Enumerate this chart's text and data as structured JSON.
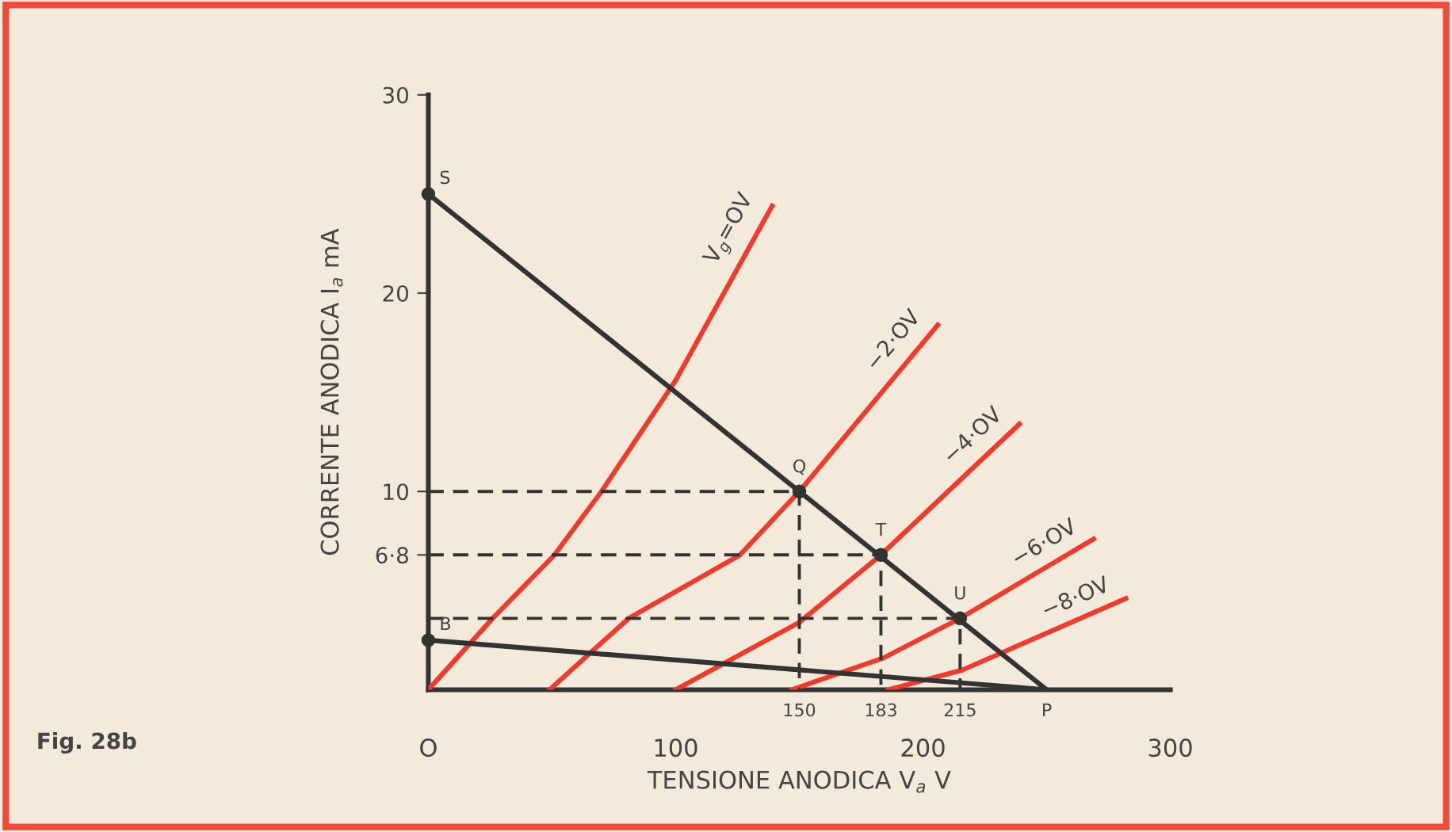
{
  "chart_data": {
    "type": "line",
    "xlabel": "TENSIONE ANODICA V$_{a}$ V",
    "ylabel": "CORRENTE ANODICA I$_{a}$ mA",
    "xlim": [
      0,
      300
    ],
    "ylim": [
      0,
      30
    ],
    "xticks": [
      {
        "value": 0,
        "label": "O"
      },
      100,
      200,
      300
    ],
    "yticks": [
      {
        "value": 6.8,
        "label": "6·8"
      },
      10,
      20,
      30
    ],
    "grid": false,
    "legend": false,
    "series": [
      {
        "name": "V$_{g}$=OV",
        "color": "#ef3b2c",
        "x": [
          0,
          26,
          51,
          70,
          100,
          139
        ],
        "values": [
          0,
          3.6,
          6.8,
          10,
          15.6,
          24.4
        ]
      },
      {
        "name": "−2·OV",
        "color": "#ef3b2c",
        "x": [
          49,
          81,
          126,
          150,
          206
        ],
        "values": [
          0,
          3.6,
          6.8,
          10,
          18.4
        ]
      },
      {
        "name": "−4·OV",
        "color": "#ef3b2c",
        "x": [
          100,
          150,
          183,
          239
        ],
        "values": [
          0,
          3.4,
          6.8,
          13.4
        ]
      },
      {
        "name": "−6·OV",
        "color": "#ef3b2c",
        "x": [
          147,
          184,
          215,
          269
        ],
        "values": [
          0,
          1.6,
          3.6,
          7.6
        ]
      },
      {
        "name": "−8·OV",
        "color": "#ef3b2c",
        "x": [
          186,
          216,
          282
        ],
        "values": [
          0,
          1.0,
          4.6
        ]
      },
      {
        "color": "#333333",
        "x": [
          0,
          250
        ],
        "values": [
          25,
          0
        ]
      },
      {
        "color": "#333333",
        "x": [
          0,
          250
        ],
        "values": [
          2.5,
          0
        ]
      },
      {
        "color": "#333333",
        "line_style": "dashed",
        "x": [
          0,
          150,
          150
        ],
        "values": [
          10,
          10,
          0
        ]
      },
      {
        "color": "#333333",
        "line_style": "dashed",
        "x": [
          0,
          183,
          183
        ],
        "values": [
          6.8,
          6.8,
          0
        ]
      },
      {
        "color": "#333333",
        "line_style": "dashed",
        "x": [
          0,
          215,
          215
        ],
        "values": [
          3.6,
          3.6,
          0
        ]
      },
      {
        "type": "scatter",
        "color": "#333333",
        "marker": "circle",
        "x": [
          0,
          150,
          183,
          215,
          0
        ],
        "values": [
          25,
          10,
          6.8,
          3.6,
          2.5
        ]
      }
    ],
    "annotations": [
      {
        "text": "S",
        "x": 0,
        "y": 25
      },
      {
        "text": "Q",
        "x": 150,
        "y": 10
      },
      {
        "text": "T",
        "x": 183,
        "y": 6.8
      },
      {
        "text": "U",
        "x": 215,
        "y": 3.6
      },
      {
        "text": "B",
        "x": 0,
        "y": 2.5
      },
      {
        "text": "P",
        "x": 250,
        "y": 0
      },
      {
        "text": "150",
        "x": 150,
        "y": 0
      },
      {
        "text": "183",
        "x": 183,
        "y": 0
      },
      {
        "text": "215",
        "x": 215,
        "y": 0
      },
      "Fig. 28b"
    ]
  }
}
